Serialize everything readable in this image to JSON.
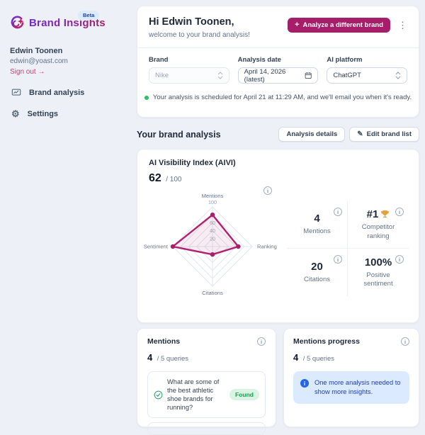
{
  "colors": {
    "accent_magenta": "#a61e69",
    "signout_pink": "#d6336c",
    "beta_bg": "#dbeafe",
    "beta_text": "#1e40af",
    "status_green": "#22c55e",
    "found_green": "#1a9e55",
    "radar_stroke": "#b02170",
    "notice_blue": "#1e40af"
  },
  "icons": {
    "plus": "+",
    "kebab": "⋮",
    "pencil": "✎",
    "gear": "⚙",
    "info": "i"
  },
  "sidebar": {
    "brand_name": "Brand Insights",
    "beta_badge": "Beta",
    "user": {
      "name": "Edwin Toonen",
      "email": "edwin@yoast.com",
      "signout_label": "Sign out →"
    },
    "nav": {
      "brand_analysis": "Brand analysis",
      "settings": "Settings"
    }
  },
  "header": {
    "greeting": "Hi Edwin Toonen,",
    "subtitle": "welcome to your brand analysis!",
    "analyze_button_label": "Analyze a different brand"
  },
  "form": {
    "brand_field": {
      "label": "Brand",
      "value": "Nike"
    },
    "date_field": {
      "label": "Analysis date",
      "value": "April 14, 2026 (latest)"
    },
    "platform_field": {
      "label": "AI platform",
      "value": "ChatGPT"
    }
  },
  "status_banner": {
    "text": "Your analysis is scheduled for April 21 at 11:29 AM, and we'll email you when it's ready."
  },
  "section_header": {
    "title": "Your brand analysis",
    "analysis_details_button": "Analysis details",
    "edit_brand_list_button": "Edit brand list"
  },
  "aivi": {
    "title": "AI Visibility Index (AIVI)",
    "score": "62",
    "score_max": "/ 100",
    "stats": [
      {
        "value": "4",
        "label": "Mentions"
      },
      {
        "value": "#1",
        "label": "Competitor ranking",
        "icon": "trophy"
      },
      {
        "value": "20",
        "label": "Citations"
      },
      {
        "value": "100%",
        "label": "Positive sentiment"
      }
    ]
  },
  "chart_data": {
    "type": "radar",
    "title": "AI Visibility Index (AIVI)",
    "score": 62,
    "axes": [
      "Mentions",
      "Ranking",
      "Citations",
      "Sentiment"
    ],
    "values": [
      80,
      65,
      20,
      100
    ],
    "max": 100,
    "grid_levels": [
      20,
      40,
      60,
      80,
      100
    ],
    "tick_labels_shown": [
      "20",
      "40",
      "60"
    ],
    "axis_max_label": "100",
    "legend": "none",
    "grid": "on"
  },
  "mentions_card": {
    "title": "Mentions",
    "count": "4",
    "count_suffix": "/ 5 queries",
    "queries": [
      {
        "text": "What are some of the best athletic shoe brands for running?",
        "badge": "Found"
      }
    ]
  },
  "progress_card": {
    "title": "Mentions progress",
    "count": "4",
    "count_suffix": "/ 5 queries",
    "notice": "One more analysis needed to show more insights."
  }
}
